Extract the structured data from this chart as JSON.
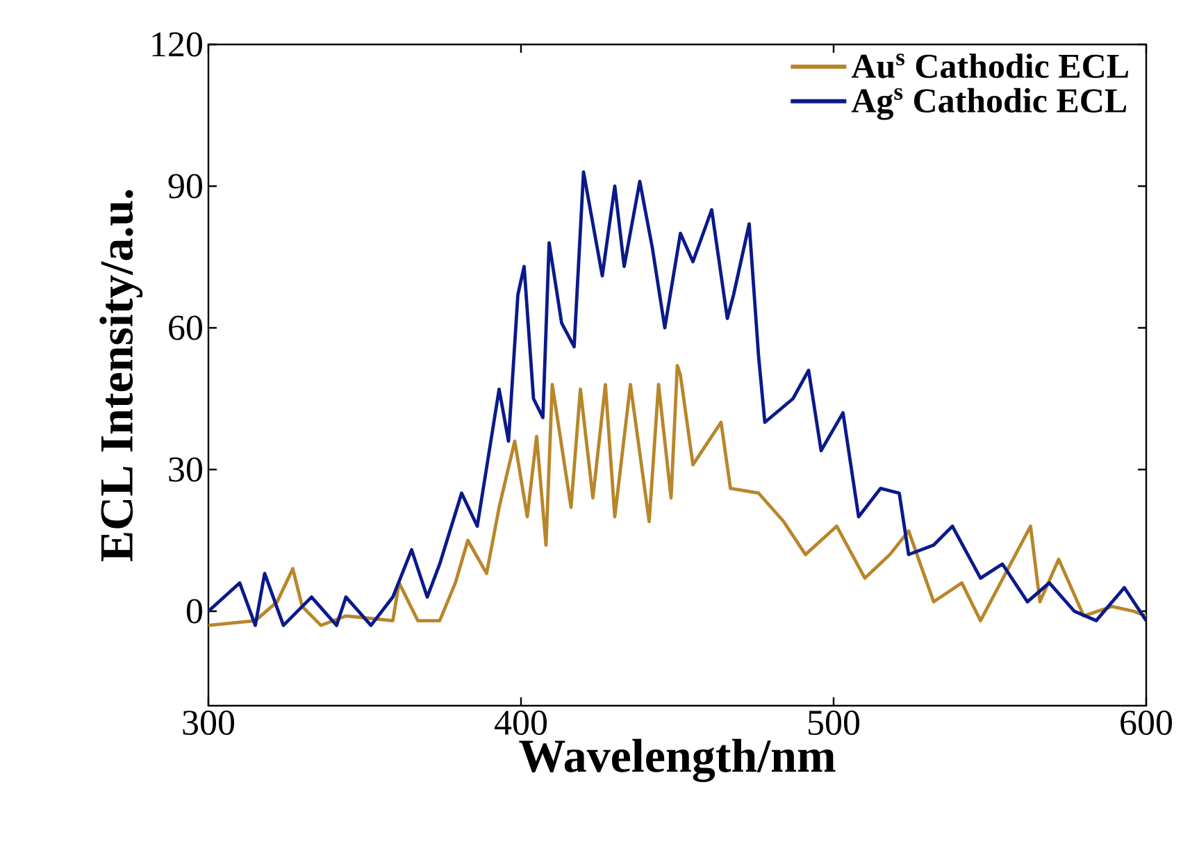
{
  "chart_data": {
    "type": "line",
    "xlabel": "Wavelength/nm",
    "ylabel": "ECL Intensity/a.u.",
    "xlim": [
      300,
      600
    ],
    "ylim": [
      -20,
      120
    ],
    "xticks": [
      300,
      400,
      500,
      600
    ],
    "yticks": [
      0,
      30,
      60,
      90,
      120
    ],
    "legend": "top right",
    "grid": false,
    "marker": "none",
    "line_style": "solid",
    "series": [
      {
        "name": "Au$^{s}$ Cathodic ECL",
        "color": "#b8862a",
        "x": [
          300,
          315,
          322,
          327,
          330,
          336,
          344,
          359,
          361,
          367,
          374,
          379,
          383,
          389,
          393,
          398,
          402,
          405,
          408,
          410,
          416,
          419,
          423,
          427,
          430,
          435,
          441,
          444,
          448,
          450,
          451,
          455,
          464,
          467,
          476,
          484,
          491,
          501,
          510,
          518,
          524,
          532,
          541,
          547,
          563,
          566,
          572,
          580,
          589,
          596,
          600
        ],
        "values": [
          -3,
          -2,
          2,
          9,
          1,
          -3,
          -1,
          -2,
          6,
          -2,
          -2,
          6,
          15,
          8,
          22,
          36,
          20,
          37,
          14,
          48,
          22,
          47,
          24,
          48,
          20,
          48,
          19,
          48,
          24,
          52,
          50,
          31,
          40,
          26,
          25,
          19,
          12,
          18,
          7,
          12,
          17,
          2,
          6,
          -2,
          18,
          2,
          11,
          -1,
          1,
          0,
          -1
        ]
      },
      {
        "name": "Ag$^{s}$ Cathodic ECL",
        "color": "#0a1a8a",
        "x": [
          300,
          310,
          315,
          318,
          324,
          333,
          341,
          344,
          352,
          359,
          365,
          370,
          374,
          381,
          386,
          393,
          396,
          399,
          401,
          404,
          407,
          409,
          413,
          417,
          420,
          426,
          430,
          433,
          438,
          442,
          446,
          451,
          455,
          461,
          466,
          468,
          473,
          476,
          478,
          487,
          492,
          496,
          503,
          508,
          515,
          521,
          524,
          532,
          538,
          547,
          554,
          562,
          569,
          577,
          584,
          593,
          600
        ],
        "values": [
          0,
          6,
          -3,
          8,
          -3,
          3,
          -3,
          3,
          -3,
          3,
          13,
          3,
          10,
          25,
          18,
          47,
          36,
          67,
          73,
          45,
          41,
          78,
          61,
          56,
          93,
          71,
          90,
          73,
          91,
          77,
          60,
          80,
          74,
          85,
          62,
          67,
          82,
          54,
          40,
          45,
          51,
          34,
          42,
          20,
          26,
          25,
          12,
          14,
          18,
          7,
          10,
          2,
          6,
          0,
          -2,
          5,
          -2
        ]
      }
    ]
  }
}
